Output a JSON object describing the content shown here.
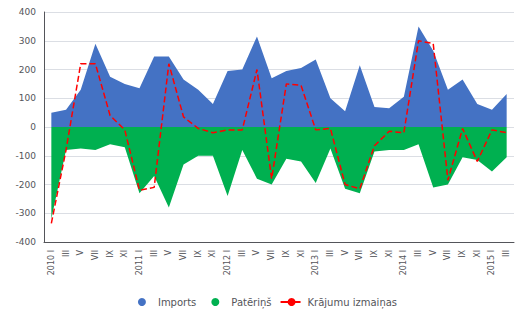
{
  "chart_data": {
    "type": "line",
    "categories": [
      "2010 I",
      "III",
      "V",
      "VII",
      "IX",
      "XI",
      "2011 I",
      "III",
      "V",
      "VII",
      "IX",
      "XI",
      "2012 I",
      "III",
      "V",
      "VII",
      "IX",
      "XI",
      "2013 I",
      "III",
      "V",
      "VII",
      "IX",
      "XI",
      "2014 I",
      "III",
      "V",
      "VII",
      "IX",
      "XI",
      "2015 I",
      "III"
    ],
    "series": [
      {
        "name": "Imports",
        "type": "area",
        "color": "#4472C4",
        "values": [
          50,
          60,
          130,
          290,
          175,
          150,
          135,
          245,
          245,
          165,
          130,
          80,
          195,
          200,
          315,
          170,
          195,
          205,
          235,
          100,
          55,
          215,
          70,
          65,
          105,
          350,
          265,
          130,
          165,
          80,
          60,
          115
        ]
      },
      {
        "name": "Patēriņš",
        "type": "area",
        "color": "#00B050",
        "values": [
          -320,
          -80,
          -75,
          -80,
          -60,
          -70,
          -230,
          -170,
          -280,
          -130,
          -100,
          -100,
          -240,
          -80,
          -180,
          -200,
          -110,
          -120,
          -195,
          -75,
          -215,
          -230,
          -85,
          -80,
          -80,
          -60,
          -210,
          -200,
          -105,
          -115,
          -155,
          -105
        ]
      },
      {
        "name": "Krājumu izmaiņas",
        "type": "line",
        "color": "#FF0000",
        "line_style": "dashed",
        "values": [
          -335,
          -80,
          220,
          220,
          40,
          -10,
          -220,
          -210,
          220,
          35,
          -5,
          -20,
          -10,
          -10,
          200,
          -180,
          150,
          145,
          -10,
          -5,
          -200,
          -215,
          -65,
          -15,
          -20,
          300,
          290,
          -185,
          -5,
          -120,
          -10,
          -20
        ]
      }
    ],
    "ylim": [
      -400,
      400
    ],
    "yticks": [
      -400,
      -300,
      -200,
      -100,
      0,
      100,
      200,
      300,
      400
    ],
    "grid": true,
    "legend": "bottom"
  }
}
